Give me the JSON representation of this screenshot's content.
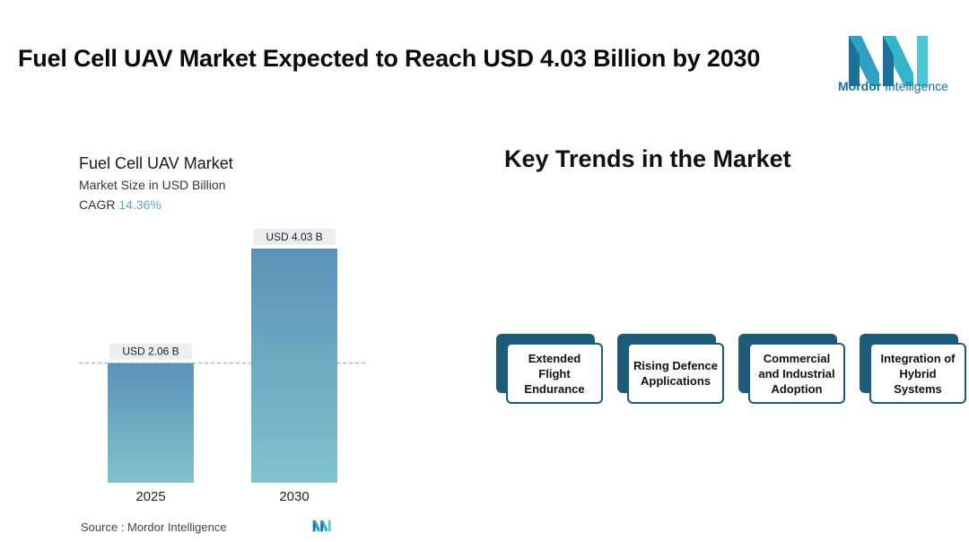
{
  "header": {
    "title": "Fuel Cell UAV Market Expected to Reach USD 4.03 Billion by 2030",
    "logo_text_bold": "Mordor",
    "logo_text_rest": " Intelligence"
  },
  "chart_data": {
    "type": "bar",
    "title": "Fuel Cell UAV Market",
    "subtitle": "Market Size in USD Billion",
    "cagr_label": "CAGR",
    "cagr_value": "14.36%",
    "categories": [
      "2025",
      "2030"
    ],
    "values": [
      2.06,
      4.03
    ],
    "data_labels": [
      "USD 2.06 B",
      "USD 4.03 B"
    ],
    "reference_line": 2.06,
    "ylim": [
      0,
      4.03
    ],
    "grid": false,
    "colors": {
      "bar_top": "#5b92b8",
      "bar_bottom": "#7fc3cb",
      "label_bg": "#e9eff1",
      "ref_line": "#7aaab8"
    }
  },
  "source": {
    "text": "Source :  Mordor Intelligence"
  },
  "trends": {
    "title": "Key Trends in the Market",
    "items": [
      {
        "label": "Extended\nFlight\nEndurance"
      },
      {
        "label": "Rising Defence\nApplications"
      },
      {
        "label": "Commercial\nand Industrial\nAdoption"
      },
      {
        "label": "Integration of\nHybrid\nSystems"
      }
    ],
    "accent": "#1d5b78"
  }
}
